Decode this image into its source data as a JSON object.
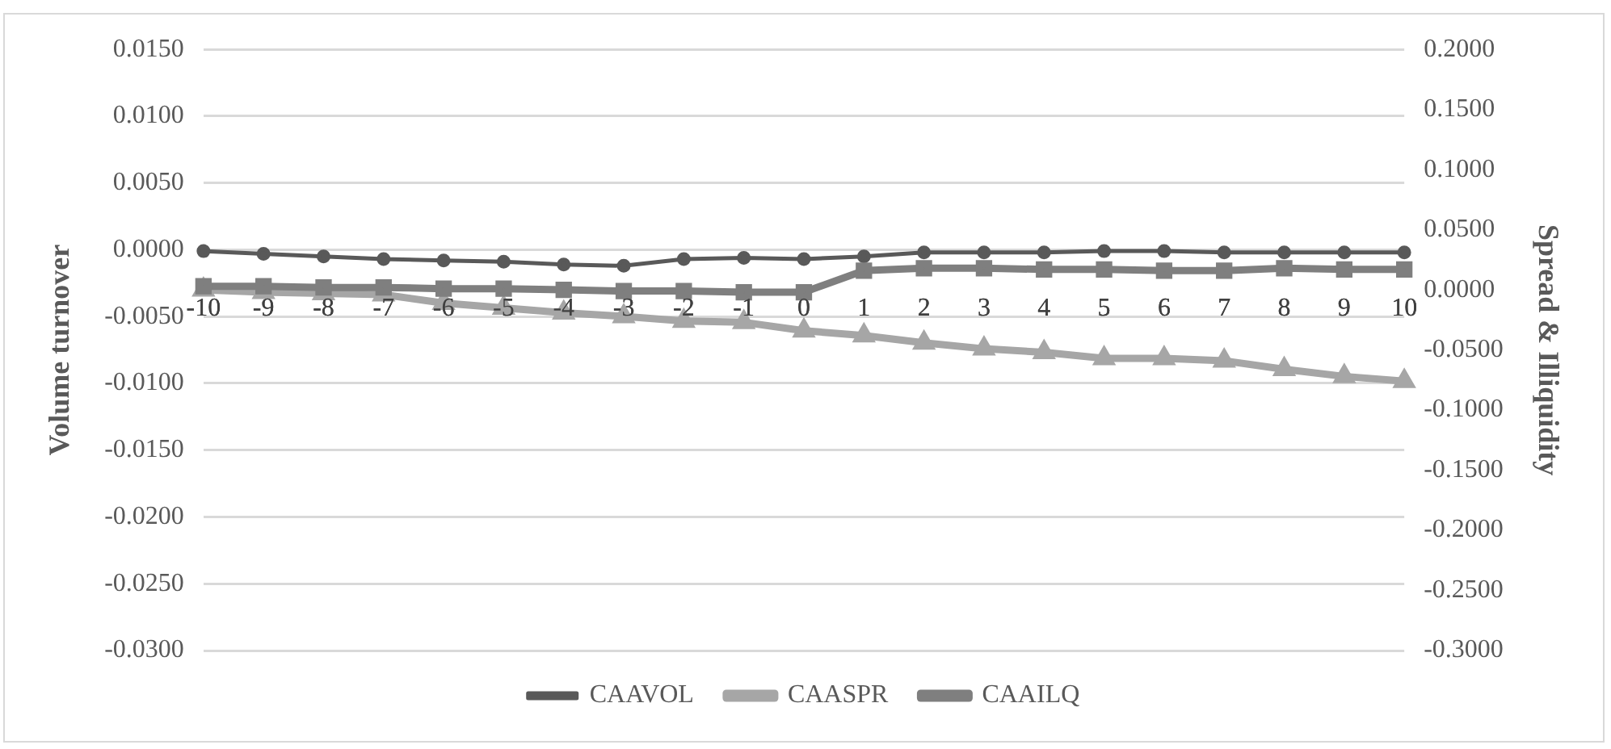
{
  "chart_data": {
    "type": "line",
    "xlabel": null,
    "ylabel": "Volume turnover",
    "y2label": "Spread & Illiquidity",
    "categories": [
      "-10",
      "-9",
      "-8",
      "-7",
      "-6",
      "-5",
      "-4",
      "-3",
      "-2",
      "-1",
      "0",
      "1",
      "2",
      "3",
      "4",
      "5",
      "6",
      "7",
      "8",
      "9",
      "10"
    ],
    "series": [
      {
        "name": "CAAVOL",
        "color": "#595959",
        "marker": "circle",
        "values": [
          -0.0001,
          -0.0003,
          -0.0005,
          -0.0007,
          -0.0008,
          -0.0009,
          -0.0011,
          -0.0012,
          -0.0007,
          -0.0006,
          -0.0007,
          -0.0005,
          -0.0002,
          -0.0002,
          -0.0002,
          -0.0001,
          -0.0001,
          -0.0002,
          -0.0002,
          -0.0002,
          -0.0002
        ]
      },
      {
        "name": "CAASPR",
        "color": "#a6a6a6",
        "marker": "triangle",
        "axis": "y2",
        "values": [
          0.0,
          -0.002,
          -0.003,
          -0.004,
          -0.011,
          -0.015,
          -0.019,
          -0.022,
          -0.026,
          -0.027,
          -0.034,
          -0.038,
          -0.044,
          -0.049,
          -0.052,
          -0.057,
          -0.057,
          -0.059,
          -0.066,
          -0.072,
          -0.076
        ]
      },
      {
        "name": "CAAILQ",
        "color": "#7f7f7f",
        "marker": "square",
        "axis": "y2",
        "values": [
          0.003,
          0.003,
          0.002,
          0.002,
          0.001,
          0.001,
          0.0,
          -0.001,
          -0.001,
          -0.002,
          -0.002,
          0.016,
          0.018,
          0.018,
          0.017,
          0.017,
          0.016,
          0.016,
          0.018,
          0.017,
          0.017
        ]
      }
    ],
    "ylim": [
      -0.03,
      0.015
    ],
    "yticks": [
      {
        "value": 0.015,
        "label": "0.0150"
      },
      {
        "value": 0.01,
        "label": "0.0100"
      },
      {
        "value": 0.005,
        "label": "0.0050"
      },
      {
        "value": 0,
        "label": "0.0000"
      },
      {
        "value": -0.005,
        "label": "-0.0050"
      },
      {
        "value": -0.01,
        "label": "-0.0100"
      },
      {
        "value": -0.015,
        "label": "-0.0150"
      },
      {
        "value": -0.02,
        "label": "-0.0200"
      },
      {
        "value": -0.025,
        "label": "-0.0250"
      },
      {
        "value": -0.03,
        "label": "-0.0300"
      }
    ],
    "y2lim": [
      -0.3,
      0.2
    ],
    "y2ticks": [
      {
        "value": 0.2,
        "label": "0.2000"
      },
      {
        "value": 0.15,
        "label": "0.1500"
      },
      {
        "value": 0.1,
        "label": "0.1000"
      },
      {
        "value": 0.05,
        "label": "0.0500"
      },
      {
        "value": 0,
        "label": "0.0000"
      },
      {
        "value": -0.05,
        "label": "-0.0500"
      },
      {
        "value": -0.1,
        "label": "-0.1000"
      },
      {
        "value": -0.15,
        "label": "-0.1500"
      },
      {
        "value": -0.2,
        "label": "-0.2000"
      },
      {
        "value": -0.25,
        "label": "-0.2500"
      },
      {
        "value": -0.3,
        "label": "-0.3000"
      }
    ],
    "grid": "y",
    "legend": "bottom"
  }
}
